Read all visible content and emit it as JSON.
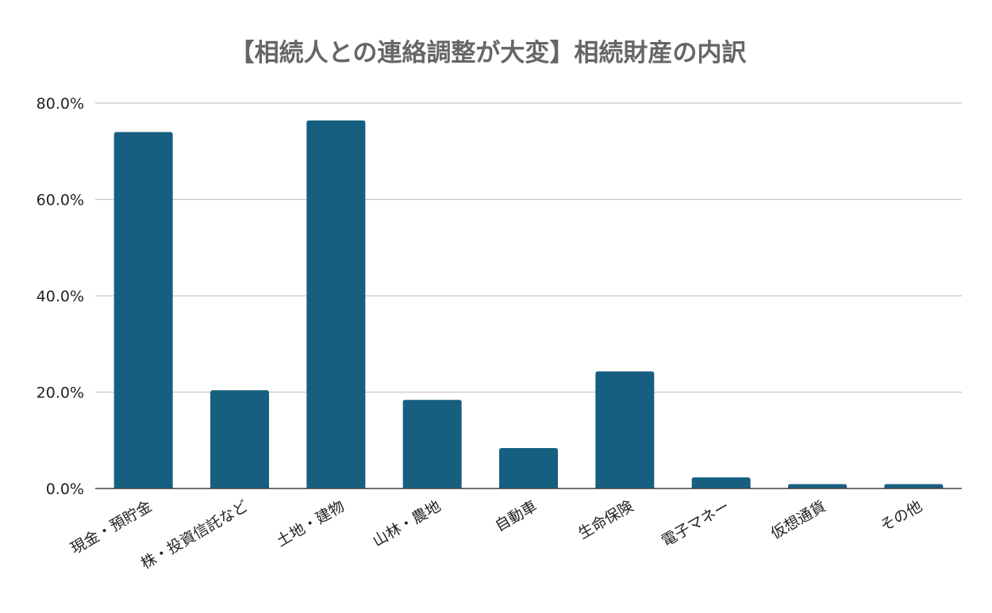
{
  "chart_data": {
    "type": "bar",
    "title": "【相続人との連絡調整が大変】相続財産の内訳",
    "xlabel": "",
    "ylabel": "",
    "ylim": [
      0,
      80
    ],
    "yticks": [
      "0.0%",
      "20.0%",
      "40.0%",
      "60.0%",
      "80.0%"
    ],
    "ytick_values": [
      0,
      20,
      40,
      60,
      80
    ],
    "grid": true,
    "categories": [
      "現金・預貯金",
      "株・投資信託など",
      "土地・建物",
      "山林・農地",
      "自動車",
      "生命保険",
      "電子マネー",
      "仮想通貨",
      "その他"
    ],
    "values": [
      74.0,
      20.4,
      76.4,
      18.4,
      8.4,
      24.3,
      2.3,
      0.9,
      0.9
    ],
    "bar_color": "#175f80",
    "grid_color": "#c8c8c8",
    "axis_color": "#444444"
  }
}
